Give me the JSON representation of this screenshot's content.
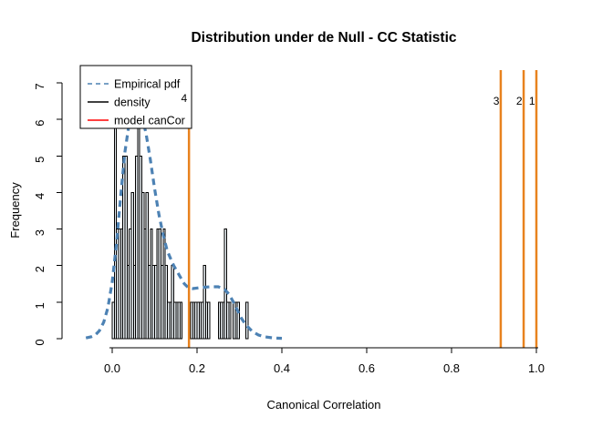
{
  "chart_data": {
    "type": "histogram",
    "title": "Distribution under de Null - CC Statistic",
    "xlabel": "Canonical Correlation",
    "ylabel": "Frequency",
    "x_ticks": [
      "0.0",
      "0.2",
      "0.4",
      "0.6",
      "0.8",
      "1.0"
    ],
    "x_tick_values": [
      0.0,
      0.2,
      0.4,
      0.6,
      0.8,
      1.0
    ],
    "y_ticks": [
      "0",
      "1",
      "2",
      "3",
      "4",
      "5",
      "6",
      "7"
    ],
    "y_tick_values": [
      0,
      1,
      2,
      3,
      4,
      5,
      6,
      7
    ],
    "xlim": [
      -0.07,
      1.04
    ],
    "ylim": [
      0,
      7
    ],
    "grid": false,
    "histogram": {
      "bin_start": 0.0,
      "bin_width": 0.005,
      "counts": [
        1,
        6,
        3,
        3,
        3,
        5,
        5,
        2,
        3,
        4,
        2,
        5,
        7,
        5,
        4,
        3,
        4,
        2,
        3,
        2,
        2,
        3,
        3,
        2,
        3,
        2,
        1,
        1,
        2,
        1,
        1,
        1,
        1,
        0,
        0,
        0,
        1,
        1,
        1,
        1,
        1,
        1,
        1,
        2,
        1,
        1,
        0,
        0,
        0,
        0,
        1,
        1,
        1,
        3,
        1,
        1,
        0,
        1,
        1,
        1,
        0,
        0,
        0,
        1,
        0,
        0
      ],
      "bar_fill": "#E8EEF2",
      "bar_stroke": "#000000"
    },
    "density_curve": {
      "name": "Empirical pdf",
      "color": "#4D82B4",
      "style": "dashed",
      "points": [
        [
          -0.062,
          0.02
        ],
        [
          -0.05,
          0.05
        ],
        [
          -0.04,
          0.1
        ],
        [
          -0.03,
          0.22
        ],
        [
          -0.02,
          0.45
        ],
        [
          -0.01,
          0.85
        ],
        [
          0.0,
          1.55
        ],
        [
          0.01,
          2.6
        ],
        [
          0.02,
          3.9
        ],
        [
          0.03,
          5.1
        ],
        [
          0.04,
          5.9
        ],
        [
          0.05,
          6.25
        ],
        [
          0.06,
          6.3
        ],
        [
          0.07,
          6.1
        ],
        [
          0.08,
          5.6
        ],
        [
          0.09,
          4.9
        ],
        [
          0.1,
          4.1
        ],
        [
          0.11,
          3.4
        ],
        [
          0.12,
          2.85
        ],
        [
          0.13,
          2.4
        ],
        [
          0.145,
          2.0
        ],
        [
          0.16,
          1.7
        ],
        [
          0.17,
          1.5
        ],
        [
          0.18,
          1.39
        ],
        [
          0.19,
          1.37
        ],
        [
          0.21,
          1.4
        ],
        [
          0.23,
          1.42
        ],
        [
          0.25,
          1.42
        ],
        [
          0.265,
          1.35
        ],
        [
          0.275,
          1.22
        ],
        [
          0.285,
          1.02
        ],
        [
          0.295,
          0.78
        ],
        [
          0.305,
          0.55
        ],
        [
          0.315,
          0.38
        ],
        [
          0.33,
          0.2
        ],
        [
          0.345,
          0.1
        ],
        [
          0.36,
          0.05
        ],
        [
          0.38,
          0.02
        ],
        [
          0.4,
          0.01
        ]
      ]
    },
    "vlines": {
      "color": "#E8821E",
      "items": [
        {
          "label": "4",
          "x": 0.181
        },
        {
          "label": "3",
          "x": 0.916
        },
        {
          "label": "2",
          "x": 0.97
        },
        {
          "label": "1",
          "x": 1.0
        }
      ]
    },
    "legend": {
      "position": "topleft",
      "items": [
        {
          "label": "Empirical pdf",
          "color": "#4D82B4",
          "style": "dashed"
        },
        {
          "label": "density",
          "color": "#000000",
          "style": "solid"
        },
        {
          "label": "model canCor",
          "color": "#FF0000",
          "style": "solid"
        }
      ]
    }
  }
}
